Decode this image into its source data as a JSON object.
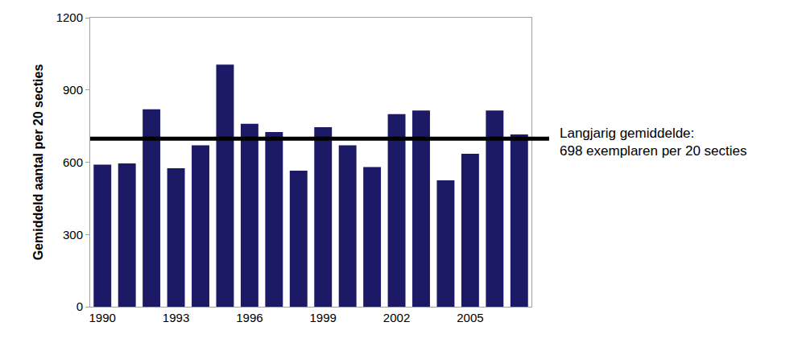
{
  "chart_data": {
    "type": "bar",
    "y_label": "Gemiddeld aantal per 20 secties",
    "categories": [
      "1990",
      null,
      null,
      "1993",
      null,
      null,
      "1996",
      null,
      null,
      "1999",
      null,
      null,
      "2002",
      null,
      null,
      "2005",
      null,
      null
    ],
    "values": [
      590,
      595,
      820,
      575,
      670,
      1005,
      760,
      725,
      565,
      745,
      670,
      580,
      800,
      815,
      525,
      635,
      815,
      715
    ],
    "color": "#1c1a66",
    "ylim": [
      0,
      1200
    ],
    "yticks": [
      0,
      300,
      600,
      900,
      1200
    ],
    "grid": false,
    "reference_line": {
      "value": 698,
      "color": "#000000",
      "label": [
        "Langjarig gemiddelde:",
        "698 exemplaren per 20 secties"
      ]
    }
  }
}
